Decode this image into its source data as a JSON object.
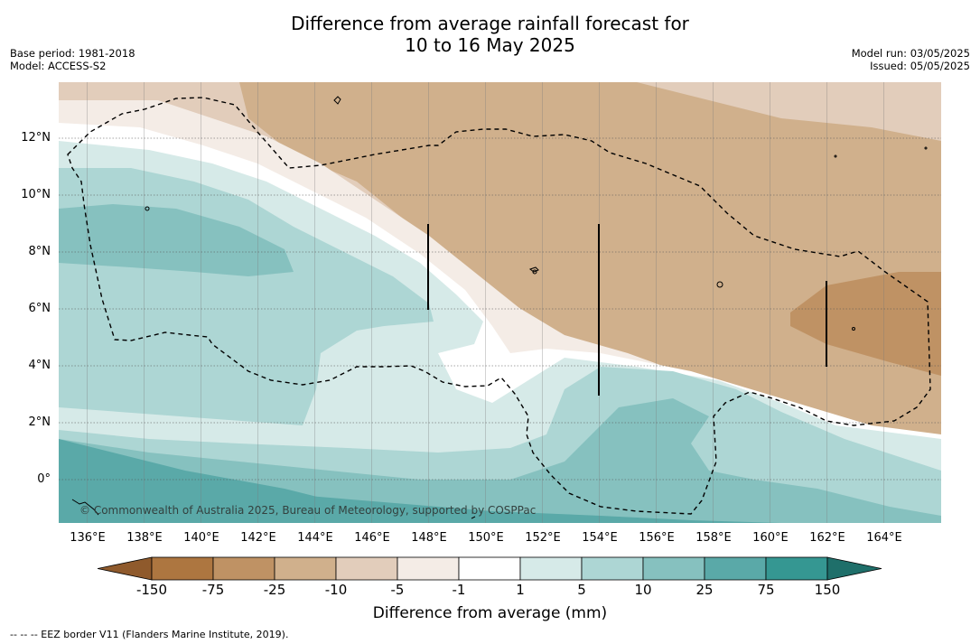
{
  "title": {
    "line1": "Difference from average rainfall forecast for",
    "line2": "10 to 16 May 2025"
  },
  "meta_left": {
    "base_period": "Base period: 1981-2018",
    "model": "Model: ACCESS-S2"
  },
  "meta_right": {
    "model_run": "Model run: 03/05/2025",
    "issued": "Issued: 05/05/2025"
  },
  "map": {
    "longitude_labels": [
      "136°E",
      "138°E",
      "140°E",
      "142°E",
      "144°E",
      "146°E",
      "148°E",
      "150°E",
      "152°E",
      "154°E",
      "156°E",
      "158°E",
      "160°E",
      "162°E",
      "164°E"
    ],
    "latitude_labels": [
      "12°N",
      "10°N",
      "8°N",
      "6°N",
      "4°N",
      "2°N",
      "0°"
    ],
    "extent": {
      "lon_min": 135,
      "lon_max": 166,
      "lat_min": -1.5,
      "lat_max": 14
    },
    "copyright": "© Commonwealth of Australia 2025, Bureau of Meteorology, supported by COSPPac",
    "eez_border_style": "dashed"
  },
  "colorbar": {
    "title": "Difference from average (mm)",
    "tick_labels": [
      "-150",
      "-75",
      "-25",
      "-10",
      "-5",
      "-1",
      "1",
      "5",
      "10",
      "25",
      "75",
      "150"
    ],
    "colors": [
      "#8f5a2c",
      "#ad7640",
      "#bf9264",
      "#d0b08c",
      "#e2cdbb",
      "#f4ece6",
      "#ffffff",
      "#d6eae8",
      "#add6d4",
      "#86c1bf",
      "#5aa9a8",
      "#359792",
      "#1f6f6a"
    ]
  },
  "footnote": "-- -- -- EEZ border V11 (Flanders Marine Institute, 2019)."
}
